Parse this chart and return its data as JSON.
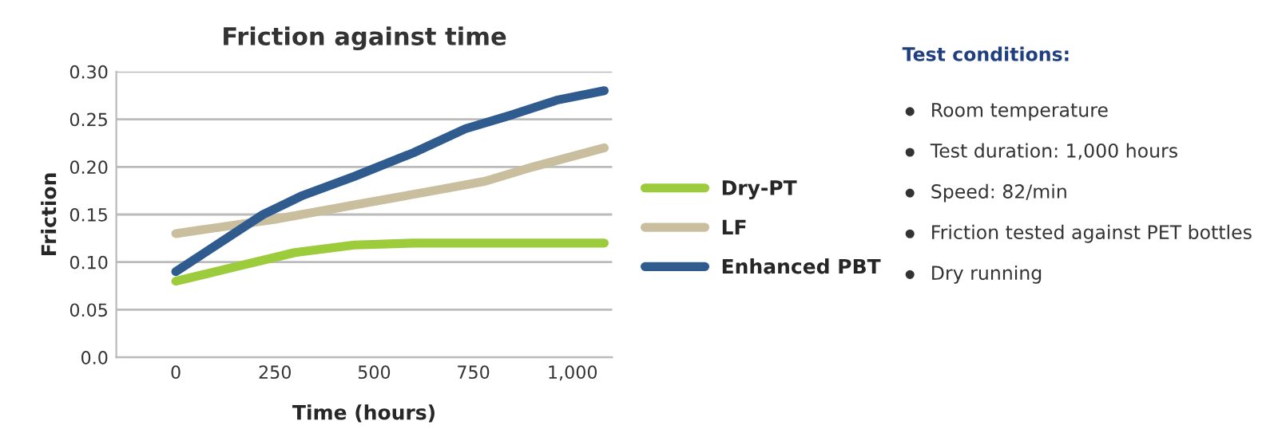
{
  "chart_data": {
    "type": "line",
    "title": "Friction against time",
    "xlabel": "Time (hours)",
    "ylabel": "Friction",
    "xlim": [
      -150,
      1100
    ],
    "xticks": [
      0,
      250,
      500,
      750,
      {
        "value": 1000,
        "label": "1,000"
      }
    ],
    "ylim": [
      0,
      0.3
    ],
    "yticks": [
      {
        "value": 0,
        "label": "0.0"
      },
      0.05,
      {
        "value": 0.1,
        "label": "0.10"
      },
      0.15,
      {
        "value": 0.2,
        "label": "0.20"
      },
      0.25,
      {
        "value": 0.3,
        "label": "0.30"
      }
    ],
    "grid": "y",
    "legend": "right",
    "marker": "none",
    "line_style": "solid",
    "series": [
      {
        "name": "Dry-PT",
        "color": "#9ccb3b",
        "x": [
          0,
          150,
          300,
          450,
          600,
          800,
          1080
        ],
        "values": [
          0.08,
          0.095,
          0.11,
          0.118,
          0.12,
          0.12,
          0.12
        ]
      },
      {
        "name": "LF",
        "color": "#c9bf9f",
        "x": [
          0,
          250,
          450,
          650,
          780,
          900,
          1080
        ],
        "values": [
          0.13,
          0.145,
          0.16,
          0.175,
          0.185,
          0.2,
          0.22
        ]
      },
      {
        "name": "Enhanced PBT",
        "color": "#2f5b8f",
        "x": [
          0,
          220,
          320,
          450,
          600,
          730,
          850,
          960,
          1080
        ],
        "values": [
          0.09,
          0.15,
          0.17,
          0.19,
          0.215,
          0.24,
          0.255,
          0.27,
          0.28
        ]
      }
    ],
    "annotations": [
      "Test conditions:",
      "Room temperature",
      "Test duration: 1,000 hours",
      "Speed: 82/min",
      "Friction tested against PET bottles",
      "Dry running"
    ]
  }
}
